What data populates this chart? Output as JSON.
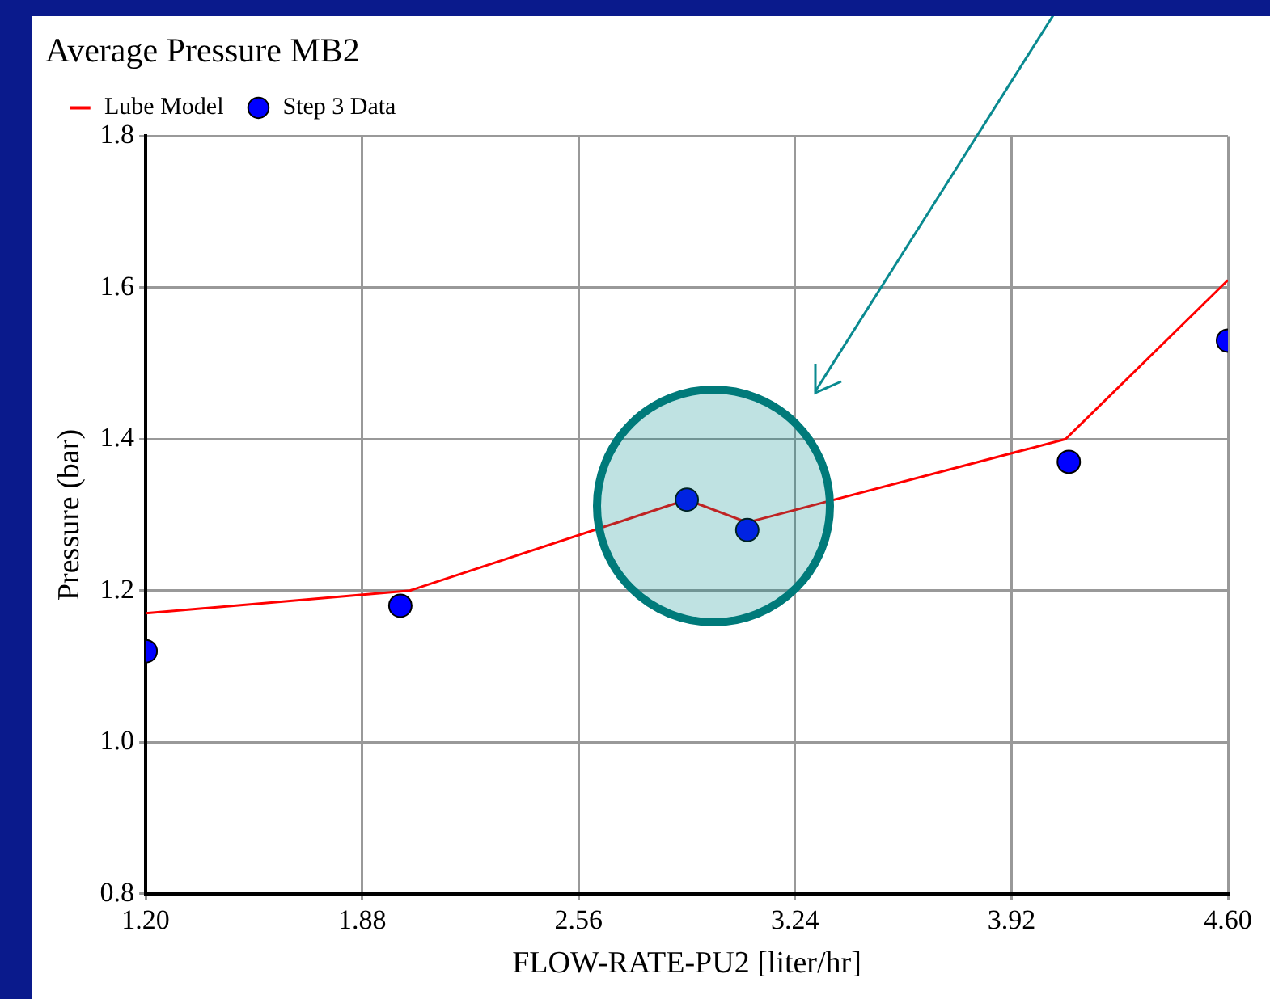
{
  "chart_data": {
    "type": "line",
    "title": "Average Pressure MB2",
    "xlabel": "FLOW-RATE-PU2 [liter/hr]",
    "ylabel": "Pressure (bar)",
    "series": [
      {
        "name": "Lube Model",
        "color": "#ff0000",
        "marker": "none",
        "x": [
          1.2,
          2.03,
          2.9,
          3.09,
          4.09,
          4.6
        ],
        "values": [
          1.17,
          1.2,
          1.32,
          1.29,
          1.4,
          1.61
        ]
      },
      {
        "name": "Step 3 Data",
        "type": "scatter",
        "color": "#0000ff",
        "marker": "circle",
        "x": [
          1.2,
          2.0,
          2.9,
          3.09,
          4.1,
          4.6
        ],
        "values": [
          1.12,
          1.18,
          1.32,
          1.28,
          1.37,
          1.53
        ]
      }
    ],
    "xlim": [
      1.2,
      4.6
    ],
    "xticks": [
      {
        "value": 1.2,
        "label": "1.20"
      },
      1.88,
      2.56,
      3.24,
      3.92,
      {
        "value": 4.6,
        "label": "4.60"
      }
    ],
    "ylim": [
      0.8,
      1.8
    ],
    "yticks": [
      0.8,
      {
        "value": 1,
        "label": "1.0"
      },
      1.2,
      1.4,
      1.6,
      1.8
    ],
    "grid": true,
    "legend": "top left"
  }
}
